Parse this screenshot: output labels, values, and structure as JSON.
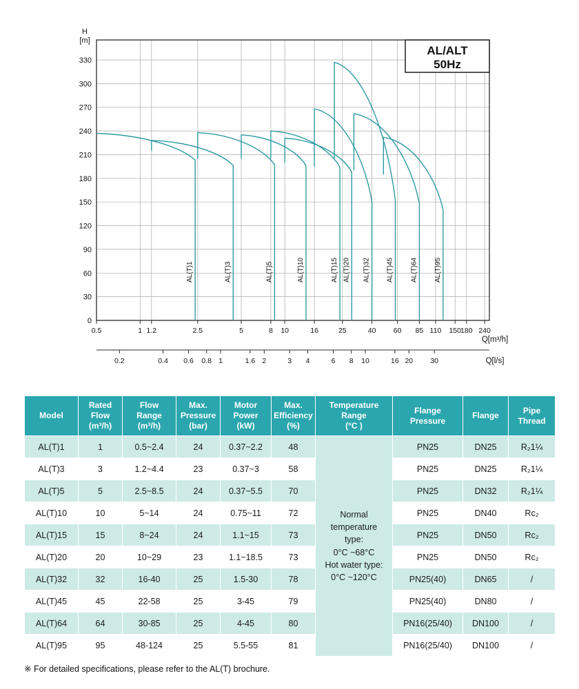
{
  "colors": {
    "header_bg": "#2BA6AE",
    "stripe_bg": "#CDEAE6",
    "curve": "#2E9AA1"
  },
  "chart_data": {
    "type": "line",
    "title_lines": [
      "AL/ALT",
      "50Hz"
    ],
    "y_axis": {
      "title1": "H",
      "title2": "[m]",
      "min": 0,
      "max": 330,
      "step": 30,
      "ticks": [
        0,
        30,
        60,
        90,
        120,
        150,
        180,
        210,
        240,
        270,
        300,
        330
      ]
    },
    "x_axis_m3h": {
      "label": "Q[m³/h]",
      "scale": "log",
      "ticks": [
        0.5,
        1,
        1.2,
        2.5,
        5,
        8,
        10,
        16,
        25,
        40,
        60,
        85,
        110,
        150,
        180,
        240
      ]
    },
    "x_axis_ls": {
      "label": "Q[l/s]",
      "ticks": [
        0.2,
        0.4,
        0.6,
        0.8,
        1,
        1.6,
        2,
        3,
        4,
        6,
        8,
        10,
        16,
        20,
        30
      ]
    },
    "series": [
      {
        "name": "AL(T)1",
        "q_min": 0.5,
        "q_max": 2.4,
        "h_left_base": 237,
        "h_start": 237,
        "h_end": 203
      },
      {
        "name": "AL(T)3",
        "q_min": 1.2,
        "q_max": 4.4,
        "h_left_base": 215,
        "h_start": 228,
        "h_end": 196
      },
      {
        "name": "AL(T)5",
        "q_min": 2.5,
        "q_max": 8.5,
        "h_left_base": 205,
        "h_start": 238,
        "h_end": 197
      },
      {
        "name": "AL(T)10",
        "q_min": 5,
        "q_max": 14,
        "h_left_base": 205,
        "h_start": 235,
        "h_end": 196
      },
      {
        "name": "AL(T)15",
        "q_min": 8,
        "q_max": 24,
        "h_left_base": 205,
        "h_start": 240,
        "h_end": 194
      },
      {
        "name": "AL(T)20",
        "q_min": 10,
        "q_max": 29,
        "h_left_base": 200,
        "h_start": 231,
        "h_end": 188
      },
      {
        "name": "AL(T)32",
        "q_min": 16,
        "q_max": 40,
        "h_left_base": 195,
        "h_start": 268,
        "h_end": 150
      },
      {
        "name": "AL(T)45",
        "q_min": 22,
        "q_max": 58,
        "h_left_base": 205,
        "h_start": 327,
        "h_end": 152
      },
      {
        "name": "AL(T)64",
        "q_min": 30,
        "q_max": 85,
        "h_left_base": 190,
        "h_start": 262,
        "h_end": 148
      },
      {
        "name": "AL(T)95",
        "q_min": 48,
        "q_max": 124,
        "h_left_base": 185,
        "h_start": 232,
        "h_end": 140
      }
    ]
  },
  "table": {
    "headers": [
      "Model",
      "Rated\nFlow\n(m³/h)",
      "Flow\nRange\n(m³/h)",
      "Max.\nPressure\n(bar)",
      "Motor\nPower\n(kW)",
      "Max.\nEfficiency\n(%)",
      "Temperature\nRange\n(°C )",
      "Flange\nPressure",
      "Flange",
      "Pipe\nThread"
    ],
    "temperature_note": "Normal\ntemperature\ntype:\n0°C ~68°C\nHot water type:\n0°C ~120°C",
    "rows": [
      [
        "AL(T)1",
        "1",
        "0.5~2.4",
        "24",
        "0.37~2.2",
        "48",
        "PN25",
        "DN25",
        "R₂1¼"
      ],
      [
        "AL(T)3",
        "3",
        "1.2~4.4",
        "23",
        "0.37~3",
        "58",
        "PN25",
        "DN25",
        "R₂1¼"
      ],
      [
        "AL(T)5",
        "5",
        "2.5~8.5",
        "24",
        "0.37~5.5",
        "70",
        "PN25",
        "DN32",
        "R₂1¼"
      ],
      [
        "AL(T)10",
        "10",
        "5~14",
        "24",
        "0.75~11",
        "72",
        "PN25",
        "DN40",
        "Rc₂"
      ],
      [
        "AL(T)15",
        "15",
        "8~24",
        "24",
        "1.1~15",
        "73",
        "PN25",
        "DN50",
        "Rc₂"
      ],
      [
        "AL(T)20",
        "20",
        "10~29",
        "23",
        "1.1~18.5",
        "73",
        "PN25",
        "DN50",
        "Rc₂"
      ],
      [
        "AL(T)32",
        "32",
        "16-40",
        "25",
        "1.5-30",
        "78",
        "PN25(40)",
        "DN65",
        "/"
      ],
      [
        "AL(T)45",
        "45",
        "22-58",
        "25",
        "3-45",
        "79",
        "PN25(40)",
        "DN80",
        "/"
      ],
      [
        "AL(T)64",
        "64",
        "30-85",
        "25",
        "4-45",
        "80",
        "PN16(25/40)",
        "DN100",
        "/"
      ],
      [
        "AL(T)95",
        "95",
        "48-124",
        "25",
        "5.5-55",
        "81",
        "PN16(25/40)",
        "DN100",
        "/"
      ]
    ]
  },
  "footnote": "※ For detailed specifications, please refer to the AL(T) brochure."
}
